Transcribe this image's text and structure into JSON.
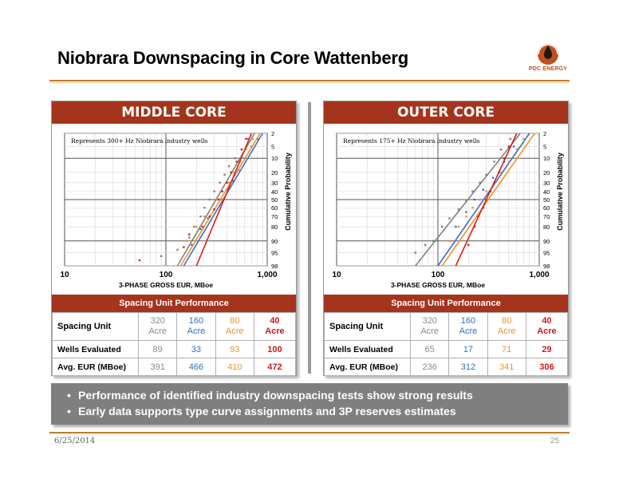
{
  "title": "Niobrara Downspacing in Core Wattenberg",
  "logo_text": "PDC ENERGY",
  "footer": {
    "date": "6/25/2014",
    "page": "25"
  },
  "colors": {
    "accent": "#a5341c",
    "s320": "#8a8a8a",
    "s160": "#2f6fc0",
    "s80": "#f0932b",
    "s40": "#d01818"
  },
  "bullets": [
    "Performance of identified industry downspacing tests show strong results",
    "Early data supports type curve assignments and 3P reserves estimates"
  ],
  "panels": [
    {
      "heading": "MIDDLE CORE",
      "note": "Represents 300+ Hz Niobrara industry wells",
      "table_title": "Spacing Unit Performance",
      "row_labels": [
        "Spacing Unit",
        "Wells Evaluated",
        "Avg. EUR  (MBoe)"
      ],
      "spacing": [
        {
          "num": "320",
          "unit": "Acre"
        },
        {
          "num": "160",
          "unit": "Acre"
        },
        {
          "num": "80",
          "unit": "Acre"
        },
        {
          "num": "40",
          "unit": "Acre"
        }
      ],
      "wells": [
        "89",
        "33",
        "93",
        "100"
      ],
      "eur": [
        "391",
        "466",
        "410",
        "472"
      ]
    },
    {
      "heading": "OUTER CORE",
      "note": "Represents 175+ Hz Niobrara industry wells",
      "table_title": "Spacing Unit Performance",
      "row_labels": [
        "Spacing Unit",
        "Wells Evaluated",
        "Avg. EUR  (MBoe)"
      ],
      "spacing": [
        {
          "num": "320",
          "unit": "Acre"
        },
        {
          "num": "160",
          "unit": "Acre"
        },
        {
          "num": "80",
          "unit": "Acre"
        },
        {
          "num": "40",
          "unit": "Acre"
        }
      ],
      "wells": [
        "65",
        "17",
        "71",
        "29"
      ],
      "eur": [
        "236",
        "312",
        "341",
        "306"
      ]
    }
  ],
  "chart_data": [
    {
      "type": "scatter",
      "title": "",
      "xlabel": "3-PHASE GROSS EUR, MBoe",
      "ylabel": "Cumulative Probability",
      "xscale": "log",
      "xlim": [
        10,
        1000
      ],
      "xticks": [
        "10",
        "100",
        "1,000"
      ],
      "yticks": [
        "2",
        "5",
        "10",
        "20",
        "30",
        "40",
        "50",
        "60",
        "70",
        "80",
        "90",
        "95",
        "98"
      ],
      "yscale": "probability",
      "grid": true,
      "series": [
        {
          "color": "gray",
          "trend_from": [
            130,
            98
          ],
          "trend_to": [
            750,
            2
          ],
          "points": [
            [
              90,
              96
            ],
            [
              130,
              94
            ],
            [
              170,
              88
            ],
            [
              190,
              80
            ],
            [
              220,
              70
            ],
            [
              240,
              60
            ],
            [
              270,
              50
            ],
            [
              300,
              40
            ],
            [
              340,
              30
            ],
            [
              380,
              22
            ],
            [
              420,
              15
            ],
            [
              480,
              10
            ],
            [
              560,
              6
            ],
            [
              650,
              3
            ]
          ]
        },
        {
          "color": "blue",
          "trend_from": [
            150,
            98
          ],
          "trend_to": [
            900,
            2
          ],
          "points": [
            [
              180,
              92
            ],
            [
              220,
              82
            ],
            [
              260,
              72
            ],
            [
              300,
              62
            ],
            [
              340,
              50
            ],
            [
              400,
              38
            ],
            [
              460,
              28
            ],
            [
              520,
              18
            ],
            [
              600,
              10
            ],
            [
              700,
              5
            ],
            [
              800,
              3
            ]
          ]
        },
        {
          "color": "orange",
          "trend_from": [
            140,
            98
          ],
          "trend_to": [
            850,
            2
          ],
          "points": [
            [
              160,
              90
            ],
            [
              200,
              80
            ],
            [
              240,
              70
            ],
            [
              280,
              60
            ],
            [
              320,
              50
            ],
            [
              360,
              40
            ],
            [
              420,
              30
            ],
            [
              470,
              20
            ],
            [
              540,
              12
            ],
            [
              620,
              6
            ],
            [
              720,
              3
            ]
          ]
        },
        {
          "color": "red",
          "trend_from": [
            200,
            98
          ],
          "trend_to": [
            700,
            2
          ],
          "points": [
            [
              55,
              97
            ],
            [
              150,
              93
            ],
            [
              170,
              86
            ],
            [
              230,
              80
            ],
            [
              270,
              70
            ],
            [
              300,
              62
            ],
            [
              330,
              50
            ],
            [
              360,
              40
            ],
            [
              400,
              30
            ],
            [
              440,
              20
            ],
            [
              500,
              12
            ],
            [
              560,
              6
            ],
            [
              620,
              3
            ]
          ]
        }
      ]
    },
    {
      "type": "scatter",
      "title": "",
      "xlabel": "3-PHASE GROSS EUR, MBoe",
      "ylabel": "Cumulative Probability",
      "xscale": "log",
      "xlim": [
        10,
        1000
      ],
      "xticks": [
        "10",
        "100",
        "1,000"
      ],
      "yticks": [
        "2",
        "5",
        "10",
        "20",
        "30",
        "40",
        "50",
        "60",
        "70",
        "80",
        "90",
        "95",
        "98"
      ],
      "yscale": "probability",
      "grid": true,
      "series": [
        {
          "color": "gray",
          "trend_from": [
            60,
            98
          ],
          "trend_to": [
            650,
            2
          ],
          "points": [
            [
              60,
              95
            ],
            [
              75,
              92
            ],
            [
              90,
              90
            ],
            [
              110,
              80
            ],
            [
              130,
              72
            ],
            [
              160,
              62
            ],
            [
              190,
              52
            ],
            [
              220,
              40
            ],
            [
              260,
              30
            ],
            [
              300,
              22
            ],
            [
              360,
              12
            ],
            [
              420,
              6
            ],
            [
              520,
              3
            ]
          ]
        },
        {
          "color": "blue",
          "trend_from": [
            100,
            98
          ],
          "trend_to": [
            800,
            2
          ],
          "points": [
            [
              150,
              80
            ],
            [
              190,
              65
            ],
            [
              230,
              50
            ],
            [
              280,
              38
            ],
            [
              350,
              25
            ],
            [
              450,
              12
            ],
            [
              560,
              5
            ]
          ]
        },
        {
          "color": "orange",
          "trend_from": [
            110,
            98
          ],
          "trend_to": [
            900,
            2
          ],
          "points": [
            [
              130,
              90
            ],
            [
              160,
              80
            ],
            [
              190,
              70
            ],
            [
              220,
              60
            ],
            [
              260,
              50
            ],
            [
              300,
              40
            ],
            [
              360,
              30
            ],
            [
              420,
              20
            ],
            [
              500,
              12
            ],
            [
              600,
              6
            ],
            [
              700,
              3
            ]
          ]
        },
        {
          "color": "red",
          "trend_from": [
            150,
            98
          ],
          "trend_to": [
            600,
            2
          ],
          "points": [
            [
              200,
              92
            ],
            [
              230,
              80
            ],
            [
              250,
              70
            ],
            [
              280,
              60
            ],
            [
              300,
              50
            ],
            [
              330,
              40
            ],
            [
              360,
              30
            ],
            [
              400,
              20
            ],
            [
              450,
              10
            ],
            [
              500,
              5
            ]
          ]
        }
      ]
    }
  ]
}
